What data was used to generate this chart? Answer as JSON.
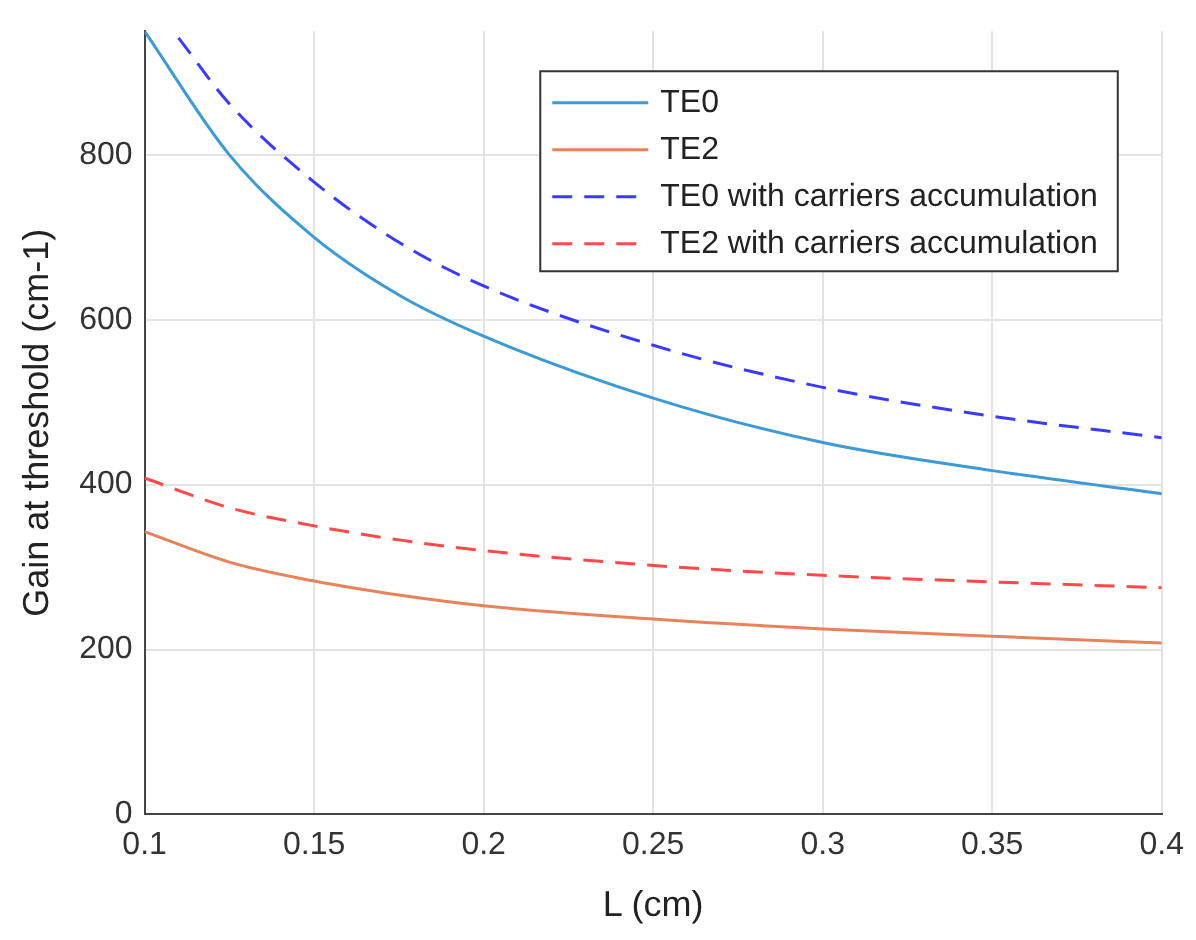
{
  "chart_data": {
    "type": "line",
    "xlabel": "L (cm)",
    "ylabel": "Gain at threshold (cm-1)",
    "xlim": [
      0.1,
      0.4
    ],
    "xticks": [
      0.1,
      0.15,
      0.2,
      0.25,
      0.3,
      0.35,
      0.4
    ],
    "ylim": [
      0,
      950
    ],
    "yticks": [
      0,
      200,
      400,
      600,
      800
    ],
    "grid": true,
    "legend": "top right",
    "marker": "none",
    "series": [
      {
        "name": "TE0",
        "color": "#3d9ad6",
        "line_style": "solid",
        "x": [
          0.1,
          0.125,
          0.15,
          0.175,
          0.2,
          0.25,
          0.3,
          0.35,
          0.4
        ],
        "values": [
          950,
          800,
          700,
          630,
          580,
          505,
          451,
          417,
          389
        ]
      },
      {
        "name": "TE2",
        "color": "#e8825a",
        "line_style": "solid",
        "x": [
          0.1,
          0.125,
          0.15,
          0.175,
          0.2,
          0.25,
          0.3,
          0.35,
          0.4
        ],
        "values": [
          343,
          306,
          283,
          266,
          253,
          237,
          225,
          216,
          208
        ]
      },
      {
        "name": "TE0 with carriers accumulation",
        "color": "#3b3bff",
        "line_style": "dashed",
        "x": [
          0.11,
          0.125,
          0.15,
          0.175,
          0.2,
          0.25,
          0.3,
          0.35,
          0.4
        ],
        "values": [
          942,
          862,
          767,
          694,
          641,
          569,
          518,
          483,
          457
        ]
      },
      {
        "name": "TE2 with carriers accumulation",
        "color": "#ff4a4a",
        "line_style": "dashed",
        "x": [
          0.1,
          0.125,
          0.15,
          0.175,
          0.2,
          0.25,
          0.3,
          0.35,
          0.4
        ],
        "values": [
          408,
          372,
          350,
          333,
          320,
          302,
          290,
          282,
          275
        ]
      }
    ]
  }
}
